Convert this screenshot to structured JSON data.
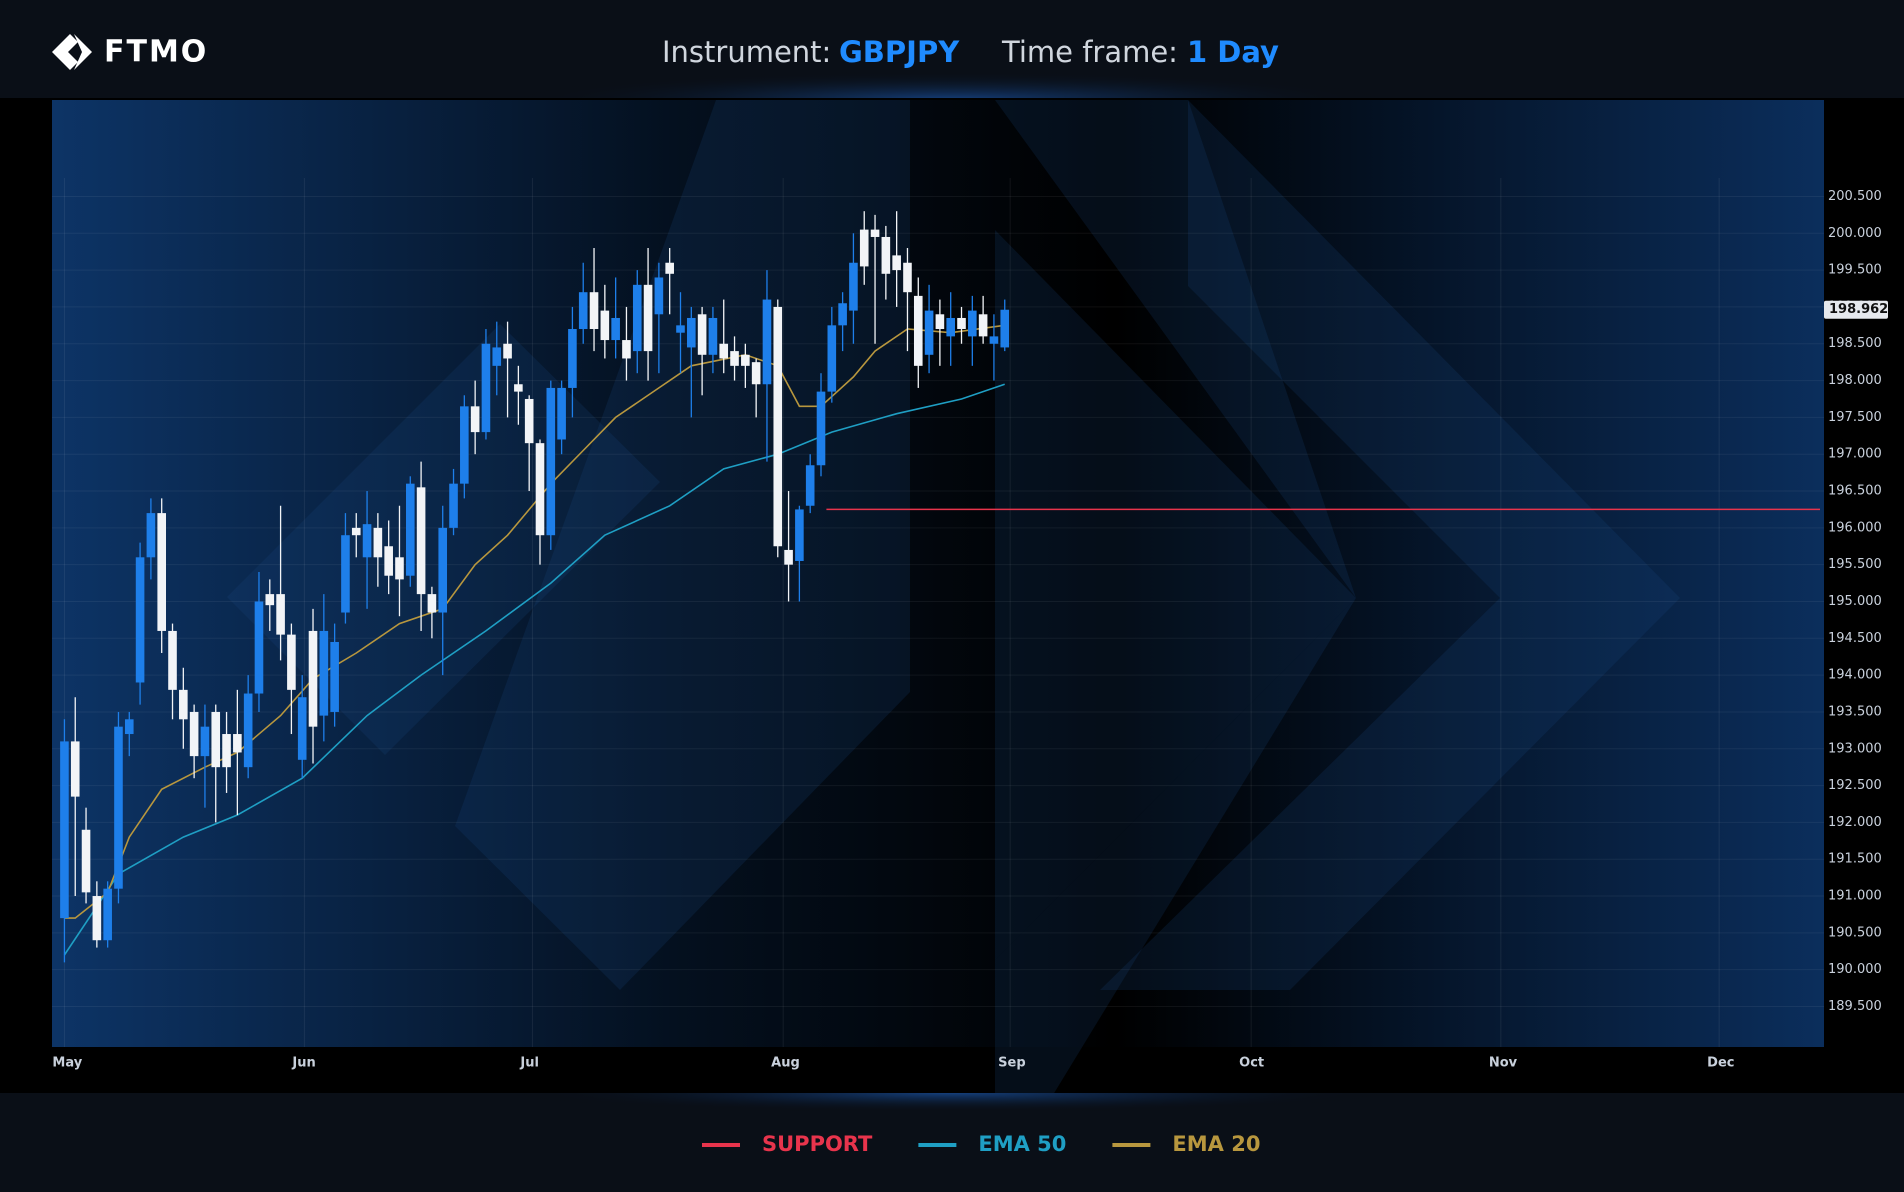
{
  "header": {
    "logo": "FTMO",
    "instrument_label": "Instrument:",
    "instrument": "GBPJPY",
    "timeframe_label": "Time frame:",
    "timeframe": "1 Day"
  },
  "chart_data": {
    "type": "candlestick",
    "up_color": "#1e7fea",
    "down_color": "#f2f4f7",
    "open": [
      190.7,
      193.1,
      191.9,
      191.0,
      190.4,
      191.1,
      193.2,
      193.9,
      195.6,
      196.2,
      194.6,
      193.8,
      193.5,
      192.9,
      193.5,
      193.2,
      193.2,
      192.75,
      193.75,
      195.1,
      195.1,
      194.55,
      192.85,
      194.6,
      193.45,
      193.5,
      194.85,
      196.0,
      195.6,
      196.0,
      195.75,
      195.6,
      195.35,
      196.55,
      195.1,
      194.85,
      196.0,
      196.6,
      197.65,
      197.3,
      198.2,
      198.5,
      197.95,
      197.75,
      197.15,
      195.9,
      197.2,
      197.9,
      198.7,
      199.2,
      198.95,
      198.55,
      198.55,
      198.4,
      199.3,
      198.9,
      199.6,
      198.65,
      198.45,
      198.9,
      198.35,
      198.5,
      198.4,
      198.35,
      198.25,
      197.95,
      199.0,
      195.7,
      195.55,
      196.3,
      196.85,
      197.85,
      198.75,
      198.95,
      200.05,
      200.05,
      199.95,
      199.7,
      199.6,
      199.15,
      198.35,
      198.9,
      198.6,
      198.85,
      198.6,
      198.9,
      198.5,
      198.45
    ],
    "high": [
      193.4,
      193.7,
      192.2,
      191.2,
      191.2,
      193.5,
      193.5,
      195.8,
      196.4,
      196.4,
      194.7,
      194.1,
      193.6,
      193.6,
      193.6,
      193.5,
      193.8,
      194.0,
      195.4,
      195.3,
      196.3,
      194.7,
      194.0,
      194.9,
      195.1,
      194.7,
      196.2,
      196.2,
      196.5,
      196.2,
      196.1,
      196.3,
      196.7,
      196.9,
      195.2,
      196.3,
      196.8,
      197.8,
      198.0,
      198.7,
      198.8,
      198.8,
      198.2,
      197.8,
      197.2,
      198.0,
      198.0,
      199.0,
      199.6,
      199.8,
      199.3,
      199.4,
      199.0,
      199.5,
      199.8,
      199.6,
      199.8,
      199.2,
      199.0,
      199.0,
      199.0,
      199.1,
      198.6,
      198.5,
      198.3,
      199.5,
      199.1,
      196.5,
      196.3,
      197.0,
      198.1,
      199.0,
      199.2,
      200.0,
      200.3,
      200.25,
      200.1,
      200.3,
      199.8,
      199.4,
      199.3,
      199.1,
      199.2,
      199.0,
      199.15,
      199.15,
      198.9,
      199.1
    ],
    "low": [
      190.1,
      191.0,
      190.9,
      190.3,
      190.3,
      190.9,
      192.9,
      193.6,
      195.3,
      194.3,
      193.4,
      193.0,
      192.6,
      192.2,
      192.0,
      192.4,
      192.1,
      192.6,
      193.5,
      194.6,
      194.2,
      193.2,
      192.6,
      192.8,
      193.1,
      193.3,
      194.7,
      195.6,
      194.9,
      195.2,
      195.1,
      194.8,
      195.2,
      194.6,
      194.5,
      194.0,
      195.9,
      196.4,
      197.0,
      197.2,
      197.8,
      197.5,
      197.4,
      196.5,
      195.5,
      195.7,
      197.0,
      197.5,
      198.5,
      198.4,
      198.3,
      198.3,
      198.0,
      198.1,
      198.0,
      198.1,
      198.9,
      198.1,
      197.5,
      197.8,
      198.1,
      198.1,
      198.0,
      197.9,
      197.5,
      196.9,
      195.6,
      195.0,
      195.0,
      196.2,
      196.7,
      197.7,
      198.4,
      198.5,
      199.3,
      198.5,
      199.1,
      199.0,
      198.4,
      197.9,
      198.1,
      198.2,
      198.2,
      198.5,
      198.2,
      198.5,
      198.0,
      198.4
    ],
    "close": [
      193.1,
      192.35,
      191.05,
      190.4,
      191.1,
      193.3,
      193.4,
      195.6,
      196.2,
      194.6,
      193.8,
      193.4,
      192.9,
      193.3,
      192.75,
      192.75,
      192.95,
      193.75,
      195.0,
      194.95,
      194.55,
      193.8,
      193.7,
      193.3,
      194.6,
      194.45,
      195.9,
      195.9,
      196.05,
      195.6,
      195.35,
      195.3,
      196.6,
      195.1,
      194.85,
      196.0,
      196.6,
      197.65,
      197.3,
      198.5,
      198.45,
      198.3,
      197.85,
      197.15,
      195.9,
      197.9,
      197.9,
      198.7,
      199.2,
      198.7,
      198.55,
      198.85,
      198.3,
      199.3,
      198.4,
      199.4,
      199.45,
      198.75,
      198.85,
      198.35,
      198.85,
      198.3,
      198.2,
      198.2,
      197.95,
      199.1,
      195.75,
      195.5,
      196.25,
      196.85,
      197.85,
      198.75,
      199.05,
      199.6,
      199.55,
      199.95,
      199.45,
      199.5,
      199.2,
      198.2,
      198.95,
      198.7,
      198.85,
      198.7,
      198.95,
      198.6,
      198.6,
      198.962
    ],
    "series": [
      {
        "name": "EMA 50",
        "color": "#1f9fc4",
        "x": [
          0,
          5,
          11,
          16,
          22,
          28,
          33,
          39,
          45,
          50,
          56,
          61,
          66,
          71,
          77,
          83,
          87
        ],
        "values": [
          190.2,
          191.3,
          191.8,
          192.1,
          192.6,
          193.45,
          194.0,
          194.6,
          195.25,
          195.9,
          196.3,
          196.8,
          197.0,
          197.3,
          197.55,
          197.75,
          197.95
        ]
      },
      {
        "name": "EMA 20",
        "color": "#b8973e",
        "x": [
          0,
          1,
          4,
          6,
          9,
          13,
          16,
          20,
          23,
          27,
          31,
          35,
          38,
          41,
          45,
          48,
          51,
          55,
          58,
          63,
          66,
          68,
          70,
          73,
          75,
          78,
          82,
          87
        ],
        "values": [
          190.7,
          190.7,
          191.05,
          191.8,
          192.45,
          192.75,
          192.95,
          193.45,
          193.95,
          194.3,
          194.7,
          194.9,
          195.5,
          195.9,
          196.6,
          197.05,
          197.5,
          197.9,
          198.2,
          198.35,
          198.2,
          197.65,
          197.65,
          198.05,
          198.4,
          198.7,
          198.65,
          198.75
        ]
      }
    ],
    "support": {
      "name": "SUPPORT",
      "color": "#e8344c",
      "value": 196.25,
      "start": 70.5
    },
    "xlim": [
      -1.15,
      162.8
    ],
    "xticks": [
      {
        "value": 0,
        "label": "May"
      },
      {
        "value": 22.2,
        "label": "Jun"
      },
      {
        "value": 43.3,
        "label": "Jul"
      },
      {
        "value": 66.5,
        "label": "Aug"
      },
      {
        "value": 87.5,
        "label": "Sep"
      },
      {
        "value": 109.8,
        "label": "Oct"
      },
      {
        "value": 132.9,
        "label": "Nov"
      },
      {
        "value": 153.1,
        "label": "Dec"
      }
    ],
    "ylim": [
      188.95,
      201.81
    ],
    "yticks": [
      {
        "value": 189.5,
        "label": "189.500"
      },
      {
        "value": 190,
        "label": "190.000"
      },
      {
        "value": 190.5,
        "label": "190.500"
      },
      {
        "value": 191,
        "label": "191.000"
      },
      {
        "value": 191.5,
        "label": "191.500"
      },
      {
        "value": 192,
        "label": "192.000"
      },
      {
        "value": 192.5,
        "label": "192.500"
      },
      {
        "value": 193,
        "label": "193.000"
      },
      {
        "value": 193.5,
        "label": "193.500"
      },
      {
        "value": 194,
        "label": "194.000"
      },
      {
        "value": 194.5,
        "label": "194.500"
      },
      {
        "value": 195,
        "label": "195.000"
      },
      {
        "value": 195.5,
        "label": "195.500"
      },
      {
        "value": 196,
        "label": "196.000"
      },
      {
        "value": 196.5,
        "label": "196.500"
      },
      {
        "value": 197,
        "label": "197.000"
      },
      {
        "value": 197.5,
        "label": "197.500"
      },
      {
        "value": 198,
        "label": "198.000"
      },
      {
        "value": 198.5,
        "label": "198.500"
      },
      {
        "value": 199,
        "label": "199.000"
      },
      {
        "value": 199.5,
        "label": "199.500"
      },
      {
        "value": 200,
        "label": "200.000"
      },
      {
        "value": 200.5,
        "label": "200.500"
      }
    ],
    "grid": true
  }
}
